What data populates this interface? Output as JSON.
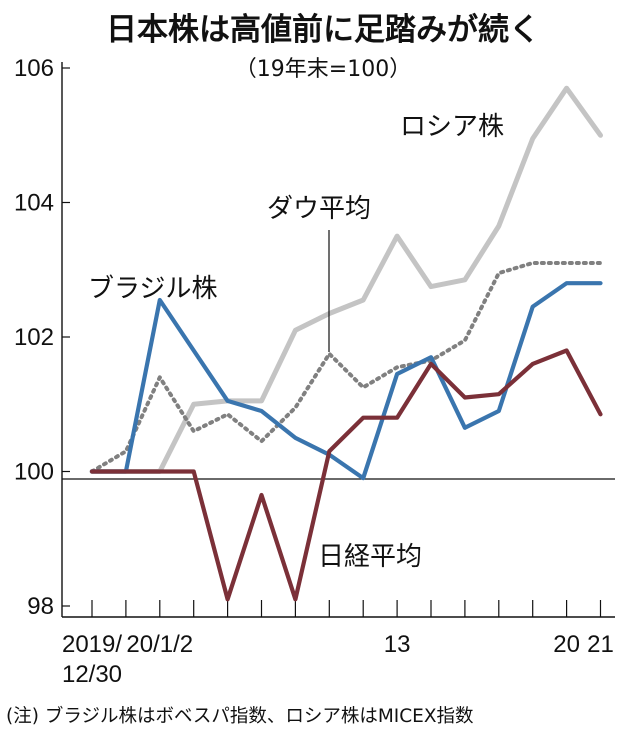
{
  "chart_data": {
    "type": "line",
    "title": "日本株は高値前に足踏みが続く",
    "subtitle": "（19年末=100）",
    "ylim": [
      98,
      106
    ],
    "yticks": [
      98,
      100,
      102,
      104,
      106
    ],
    "xticks": [
      {
        "index": 0,
        "lines": [
          "2019/",
          "12/30"
        ]
      },
      {
        "index": 2,
        "lines": [
          "20/1/2"
        ]
      },
      {
        "index": 9,
        "lines": [
          "13"
        ]
      },
      {
        "index": 14,
        "lines": [
          "20"
        ]
      },
      {
        "index": 15,
        "lines": [
          "21"
        ]
      }
    ],
    "series": [
      {
        "name": "ロシア株",
        "color": "#c4c4c4",
        "style": "solid",
        "values": [
          100,
          100,
          100,
          101.0,
          101.05,
          101.05,
          102.1,
          102.35,
          102.55,
          103.5,
          102.75,
          102.85,
          103.65,
          104.95,
          105.7,
          105.0
        ]
      },
      {
        "name": "ダウ平均",
        "color": "#808080",
        "style": "dotted",
        "values": [
          100,
          100.3,
          101.4,
          100.6,
          100.85,
          100.45,
          100.95,
          101.75,
          101.25,
          101.55,
          101.65,
          101.95,
          102.95,
          103.1,
          103.1,
          103.1
        ]
      },
      {
        "name": "ブラジル株",
        "color": "#3a75ae",
        "style": "solid",
        "values": [
          100,
          100,
          102.55,
          101.8,
          101.05,
          100.9,
          100.5,
          100.25,
          99.9,
          101.45,
          101.7,
          100.65,
          100.9,
          102.45,
          102.8,
          102.8
        ]
      },
      {
        "name": "日経平均",
        "color": "#7b3038",
        "style": "solid",
        "values": [
          100,
          100,
          100,
          100,
          98.1,
          99.65,
          98.1,
          100.3,
          100.8,
          100.8,
          101.6,
          101.1,
          101.15,
          101.6,
          101.8,
          100.85
        ]
      }
    ],
    "note": "(注) ブラジル株はボベスパ指数、ロシア株はMICEX指数"
  }
}
